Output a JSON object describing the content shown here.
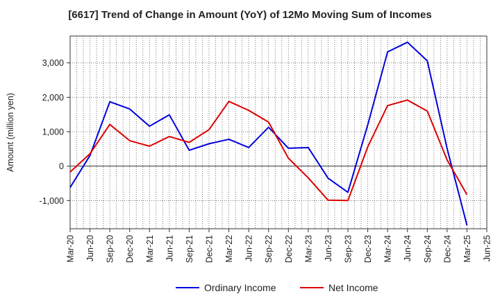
{
  "chart_data": {
    "type": "line",
    "title": "[6617]  Trend of Change in Amount (YoY) of 12Mo Moving Sum of Incomes",
    "ylabel": "Amount (million yen)",
    "xlabel": "",
    "categories": [
      "Mar-20",
      "Jun-20",
      "Sep-20",
      "Dec-20",
      "Mar-21",
      "Jun-21",
      "Sep-21",
      "Dec-21",
      "Mar-22",
      "Jun-22",
      "Sep-22",
      "Dec-22",
      "Mar-23",
      "Jun-23",
      "Sep-23",
      "Dec-23",
      "Mar-24",
      "Jun-24",
      "Sep-24",
      "Dec-24",
      "Mar-25",
      "Jun-25"
    ],
    "yticks": [
      -1000,
      0,
      1000,
      2000,
      3000
    ],
    "ytick_labels": [
      "-1,000",
      "0",
      "1,000",
      "2,000",
      "3,000"
    ],
    "ylim": [
      -1820,
      3780
    ],
    "grid": true,
    "legend": "bottom",
    "series": [
      {
        "name": "Ordinary Income",
        "color": "#0000dd",
        "values": [
          -620,
          310,
          1870,
          1660,
          1160,
          1490,
          460,
          650,
          780,
          540,
          1130,
          520,
          540,
          -350,
          -760,
          1200,
          3320,
          3600,
          3060,
          510,
          -1720,
          null
        ]
      },
      {
        "name": "Net Income",
        "color": "#dd0000",
        "values": [
          -170,
          360,
          1210,
          740,
          580,
          860,
          690,
          1060,
          1880,
          1620,
          1280,
          230,
          -340,
          -990,
          -1000,
          560,
          1760,
          1920,
          1600,
          180,
          -830,
          null
        ]
      }
    ]
  }
}
